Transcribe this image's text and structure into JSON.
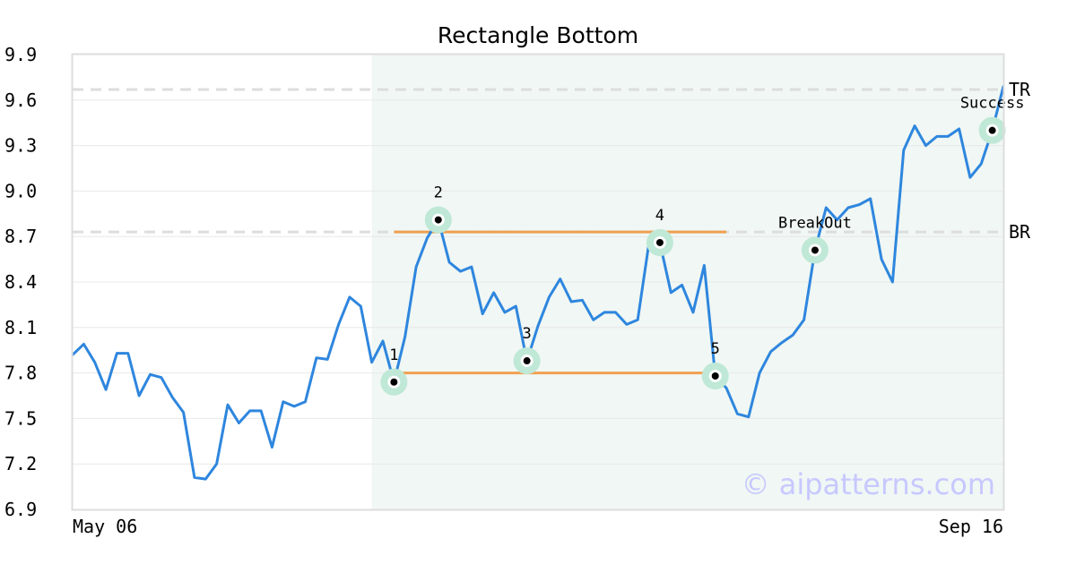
{
  "chart_data": {
    "type": "line",
    "title": "Rectangle Bottom",
    "xlabel": "",
    "ylabel": "",
    "ylim": [
      6.9,
      9.9
    ],
    "yticks": [
      "6.9",
      "7.2",
      "7.5",
      "7.8",
      "8.1",
      "8.4",
      "8.7",
      "9.0",
      "9.3",
      "9.6",
      "9.9"
    ],
    "xticks": [
      "May 06",
      "Sep 16"
    ],
    "grid": "horizontal",
    "series": [
      {
        "color": "#2e86de",
        "values": [
          7.92,
          7.99,
          7.87,
          7.69,
          7.93,
          7.93,
          7.65,
          7.79,
          7.77,
          7.64,
          7.54,
          7.11,
          7.1,
          7.2,
          7.59,
          7.47,
          7.55,
          7.55,
          7.31,
          7.61,
          7.58,
          7.61,
          7.9,
          7.89,
          8.12,
          8.3,
          8.24,
          7.87,
          8.01,
          7.74,
          8.04,
          8.5,
          8.69,
          8.81,
          8.53,
          8.47,
          8.5,
          8.19,
          8.33,
          8.2,
          8.24,
          7.88,
          8.11,
          8.3,
          8.42,
          8.27,
          8.28,
          8.15,
          8.2,
          8.2,
          8.12,
          8.15,
          8.65,
          8.66,
          8.33,
          8.38,
          8.2,
          8.51,
          7.78,
          7.7,
          7.53,
          7.51,
          7.8,
          7.94,
          8.0,
          8.05,
          8.15,
          8.61,
          8.89,
          8.81,
          8.89,
          8.91,
          8.95,
          8.55,
          8.4,
          9.27,
          9.43,
          9.3,
          9.36,
          9.36,
          9.41,
          9.09,
          9.18,
          9.4,
          9.69
        ]
      }
    ],
    "pattern_region": {
      "start_index": 27,
      "end_index": 84
    },
    "levels": [
      {
        "label": "TR",
        "value": 9.67
      },
      {
        "label": "BR",
        "value": 8.73
      }
    ],
    "rectangle": {
      "top": {
        "value": 8.73,
        "start_index": 29,
        "end_index": 59
      },
      "bottom": {
        "value": 7.8,
        "start_index": 29,
        "end_index": 59
      }
    },
    "points": [
      {
        "label": "1",
        "index": 29,
        "value": 7.74
      },
      {
        "label": "2",
        "index": 33,
        "value": 8.81
      },
      {
        "label": "3",
        "index": 41,
        "value": 7.88
      },
      {
        "label": "4",
        "index": 53,
        "value": 8.66
      },
      {
        "label": "5",
        "index": 58,
        "value": 7.78
      },
      {
        "label": "BreakOut",
        "index": 67,
        "value": 8.61
      },
      {
        "label": "Success",
        "index": 83,
        "value": 9.4
      }
    ],
    "watermark": "© aipatterns.com",
    "colors": {
      "line": "#2e86de",
      "rectangle": "#f0a050",
      "pattern_bg": "#f0f7f4",
      "marker_halo": "#bfe8d6",
      "dashed": "#dddddd",
      "watermark": "#c8c8ff"
    }
  }
}
